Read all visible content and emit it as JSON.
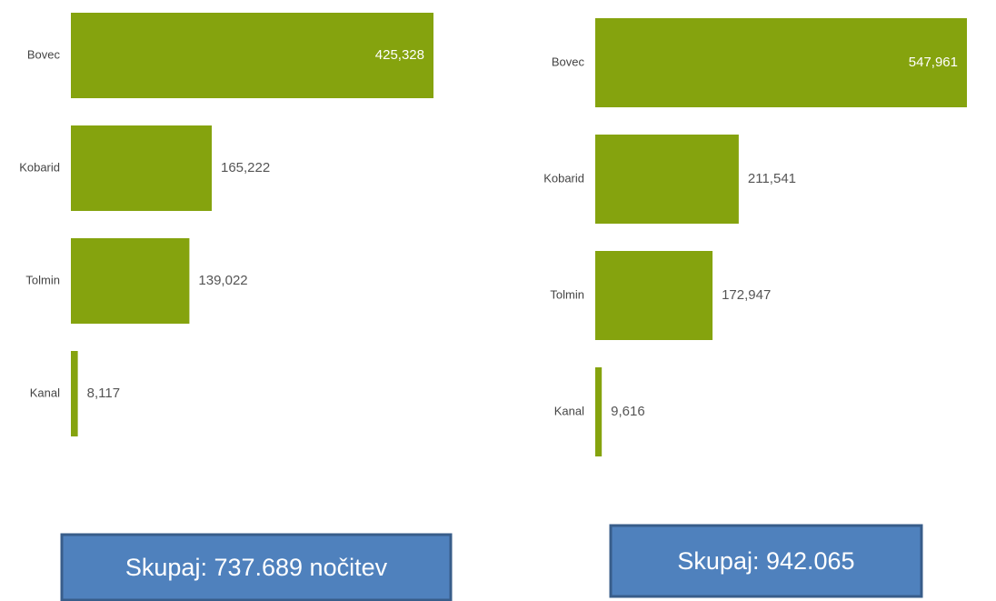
{
  "chart_data": [
    {
      "type": "bar",
      "orientation": "horizontal",
      "color": "#85a30e",
      "categories": [
        "Bovec",
        "Kobarid",
        "Tolmin",
        "Kanal"
      ],
      "values": [
        425328,
        165222,
        139022,
        8117
      ],
      "value_labels": [
        "425,328",
        "165,222",
        "139,022",
        "8,117"
      ],
      "annotation": "Skupaj: 737.689 nočitev"
    },
    {
      "type": "bar",
      "orientation": "horizontal",
      "color": "#85a30e",
      "categories": [
        "Bovec",
        "Kobarid",
        "Tolmin",
        "Kanal"
      ],
      "values": [
        547961,
        211541,
        172947,
        9616
      ],
      "value_labels": [
        "547,961",
        "211,541",
        "172,947",
        "9,616"
      ],
      "annotation": "Skupaj: 942.065"
    }
  ]
}
